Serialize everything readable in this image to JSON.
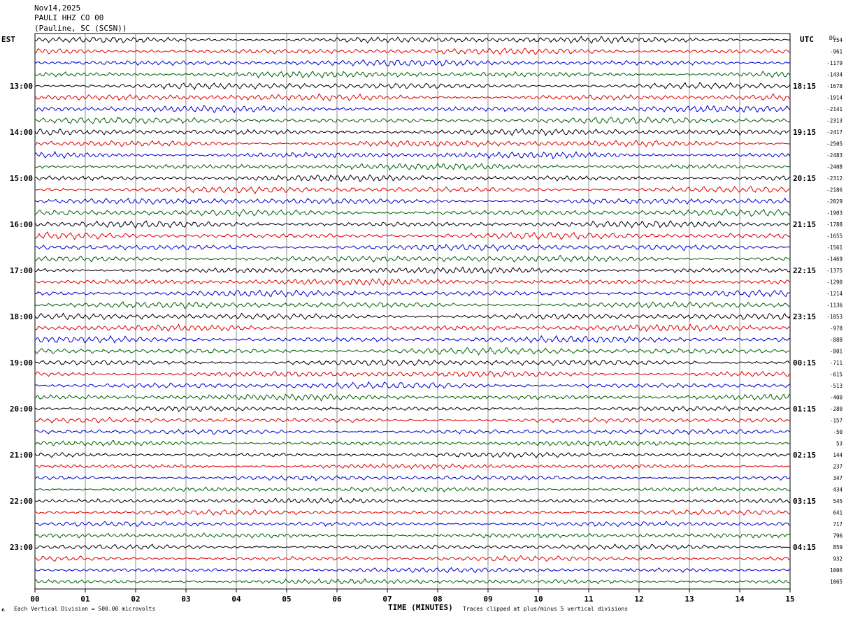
{
  "header": {
    "date": "Nov14,2025",
    "station": "PAULI HHZ CO 00",
    "location": "(Pauline, SC (SCSN))"
  },
  "left_zone": "EST",
  "right_zone": "UTC",
  "dc_label": "DC",
  "chart_data": {
    "type": "line",
    "subtype": "helicorder",
    "title": "Nov14,2025 PAULI HHZ CO 00 (Pauline, SC (SCSN))",
    "xlabel": "TIME (MINUTES)",
    "x_ticks": [
      "00",
      "01",
      "02",
      "03",
      "04",
      "05",
      "06",
      "07",
      "08",
      "09",
      "10",
      "11",
      "12",
      "13",
      "14",
      "15"
    ],
    "xlim": [
      0,
      15
    ],
    "rows_per_hour": 4,
    "row_colors": [
      "#000000",
      "#e00000",
      "#0000d0",
      "#006000"
    ],
    "left_time_labels": [
      "13:00",
      "14:00",
      "15:00",
      "16:00",
      "17:00",
      "18:00",
      "19:00",
      "20:00",
      "21:00",
      "22:00",
      "23:00"
    ],
    "right_time_labels": [
      "18:15",
      "19:15",
      "20:15",
      "21:15",
      "22:15",
      "23:15",
      "00:15",
      "01:15",
      "02:15",
      "03:15",
      "04:15"
    ],
    "first_labeled_row": 4,
    "dc_offsets": [
      "754",
      "-961",
      "-1179",
      "-1434",
      "-1678",
      "-1914",
      "-2141",
      "-2313",
      "-2417",
      "-2505",
      "-2483",
      "-2408",
      "-2312",
      "-2186",
      "-2029",
      "-1903",
      "-1788",
      "-1655",
      "-1561",
      "-1469",
      "-1375",
      "-1290",
      "-1214",
      "-1136",
      "-1053",
      "-978",
      "-888",
      "-801",
      "-711",
      "-615",
      "-513",
      "-400",
      "-280",
      "-157",
      "-50",
      "53",
      "144",
      "237",
      "347",
      "434",
      "545",
      "641",
      "717",
      "796",
      "859",
      "932",
      "1006",
      "1065"
    ],
    "grid": true,
    "scale_note": "Each Vertical Division =  500.00 microvolts",
    "clip_note": "Traces clipped at plus/minus 5 vertical divisions"
  }
}
